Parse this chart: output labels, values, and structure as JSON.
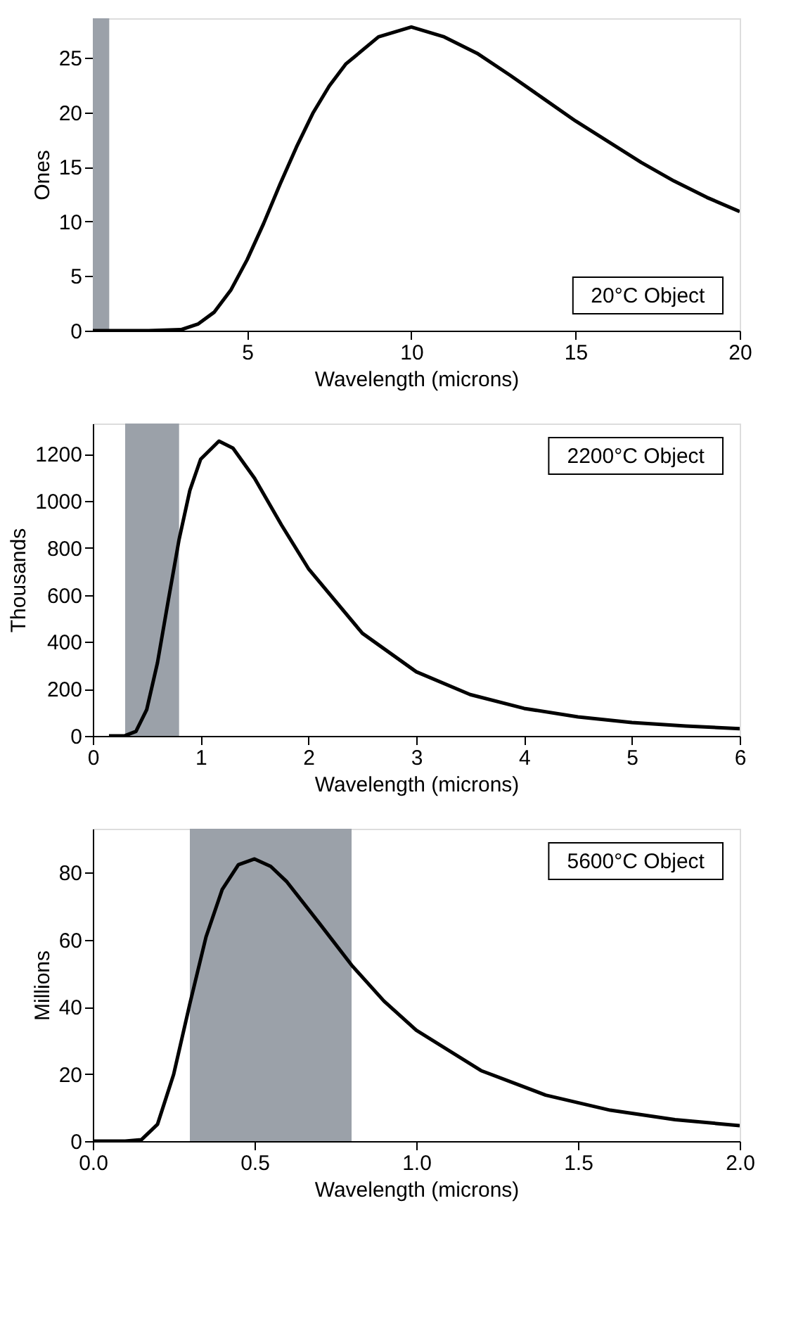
{
  "chart_data": [
    {
      "type": "line",
      "xlabel": "Wavelength (microns)",
      "ylabel": "Ones",
      "annotations": [
        "20°C Object"
      ],
      "x": [
        0.3,
        2,
        3,
        3.5,
        4,
        4.5,
        5,
        5.5,
        6,
        6.5,
        7,
        7.5,
        8,
        9,
        10,
        11,
        12,
        13,
        14,
        15,
        16,
        17,
        18,
        19,
        20
      ],
      "series": [
        {
          "color": "#000000",
          "values": [
            0,
            0,
            0.1,
            0.6,
            1.7,
            3.7,
            6.5,
            9.8,
            13.4,
            16.8,
            19.9,
            22.4,
            24.4,
            26.9,
            27.8,
            26.9,
            25.4,
            23.4,
            21.3,
            19.2,
            17.3,
            15.4,
            13.7,
            12.2,
            10.9
          ]
        }
      ],
      "xlim": [
        0.3,
        20
      ],
      "xticks": [
        5,
        10,
        15,
        20
      ],
      "ylim": [
        0,
        28.6
      ],
      "yticks": [
        0,
        5,
        10,
        15,
        20,
        25
      ],
      "bands": [
        {
          "axis": "x",
          "from": 0.3,
          "to": 0.8,
          "color": "#9ba1a9"
        }
      ],
      "grid": false,
      "legend": false
    },
    {
      "type": "line",
      "xlabel": "Wavelength (microns)",
      "ylabel": "Thousands",
      "annotations": [
        "2200°C Object"
      ],
      "x": [
        0.15,
        0.2,
        0.3,
        0.4,
        0.5,
        0.6,
        0.7,
        0.8,
        0.9,
        1.0,
        1.17,
        1.3,
        1.5,
        1.75,
        2.0,
        2.5,
        3.0,
        3.5,
        4.0,
        4.5,
        5.0,
        5.5,
        6.0
      ],
      "series": [
        {
          "color": "#000000",
          "values": [
            0,
            0,
            1,
            19,
            112,
            312,
            577,
            836,
            1045,
            1178,
            1255,
            1225,
            1097,
            898,
            712,
            437,
            273,
            176,
            117,
            81,
            57,
            42,
            31
          ]
        }
      ],
      "xlim": [
        0,
        6
      ],
      "xticks": [
        0,
        1,
        2,
        3,
        4,
        5,
        6
      ],
      "ylim": [
        0,
        1330
      ],
      "yticks": [
        0,
        200,
        400,
        600,
        800,
        1000,
        1200
      ],
      "bands": [
        {
          "axis": "x",
          "from": 0.3,
          "to": 0.8,
          "color": "#9ba1a9"
        }
      ],
      "grid": false,
      "legend": false
    },
    {
      "type": "line",
      "xlabel": "Wavelength (microns)",
      "ylabel": "Millions",
      "annotations": [
        "5600°C Object"
      ],
      "x": [
        0.0,
        0.1,
        0.15,
        0.2,
        0.25,
        0.3,
        0.35,
        0.4,
        0.45,
        0.5,
        0.55,
        0.6,
        0.7,
        0.8,
        0.9,
        1.0,
        1.2,
        1.4,
        1.6,
        1.8,
        2.0
      ],
      "series": [
        {
          "color": "#000000",
          "values": [
            0,
            0,
            0.4,
            5,
            19.9,
            40.9,
            60.8,
            74.9,
            82.3,
            84,
            81.8,
            77.2,
            64.9,
            52.4,
            41.7,
            33.0,
            21.0,
            13.7,
            9.2,
            6.4,
            4.6
          ]
        }
      ],
      "xlim": [
        0,
        2
      ],
      "xticks": [
        {
          "value": 0,
          "label": "0.0"
        },
        {
          "value": 0.5,
          "label": "0.5"
        },
        {
          "value": 1,
          "label": "1.0"
        },
        {
          "value": 1.5,
          "label": "1.5"
        },
        {
          "value": 2,
          "label": "2.0"
        }
      ],
      "ylim": [
        0,
        93
      ],
      "yticks": [
        0,
        20,
        40,
        60,
        80
      ],
      "bands": [
        {
          "axis": "x",
          "from": 0.3,
          "to": 0.8,
          "color": "#9ba1a9"
        }
      ],
      "grid": false,
      "legend": false
    }
  ]
}
